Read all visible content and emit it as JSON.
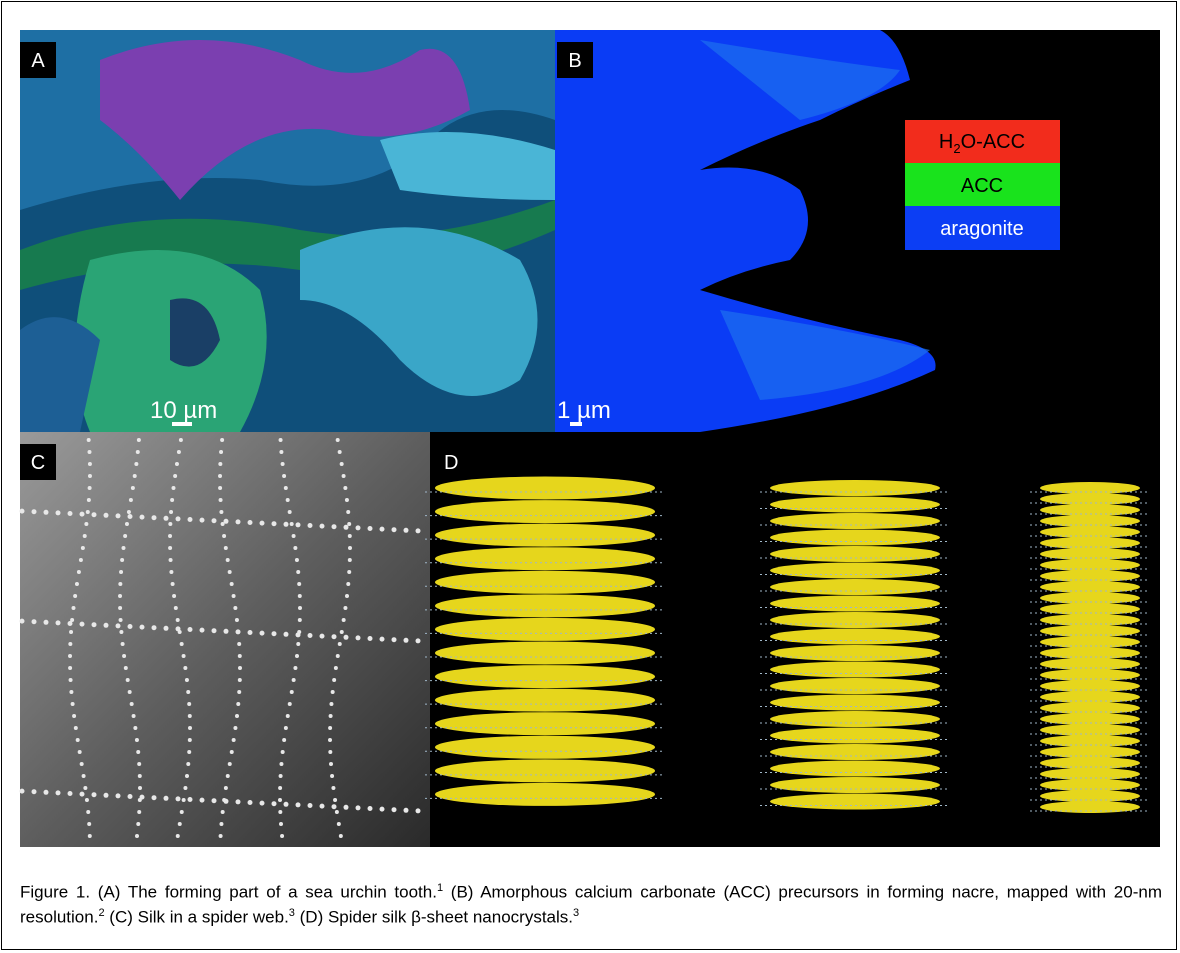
{
  "panels": [
    {
      "label": "A",
      "scale_bar": "10 µm"
    },
    {
      "label": "B",
      "scale_bar": "1 µm",
      "legend": [
        {
          "parts": [
            "H",
            "2",
            "O-ACC"
          ]
        },
        {
          "parts": [
            "ACC"
          ]
        },
        {
          "parts": [
            "aragonite"
          ]
        }
      ]
    },
    {
      "label": "C"
    },
    {
      "label": "D"
    }
  ],
  "caption": [
    {
      "text": "Figure 1. (A) The forming part of a sea urchin tooth."
    },
    {
      "sup": "1"
    },
    {
      "text": " (B) Amorphous calcium carbonate (ACC) precursors in forming nacre, mapped with 20-nm resolution."
    },
    {
      "sup": "2"
    },
    {
      "text": " (C) Silk in a spider web."
    },
    {
      "sup": "3"
    },
    {
      "text": " (D) Spider silk β-sheet nanocrystals."
    },
    {
      "sup": "3"
    }
  ]
}
